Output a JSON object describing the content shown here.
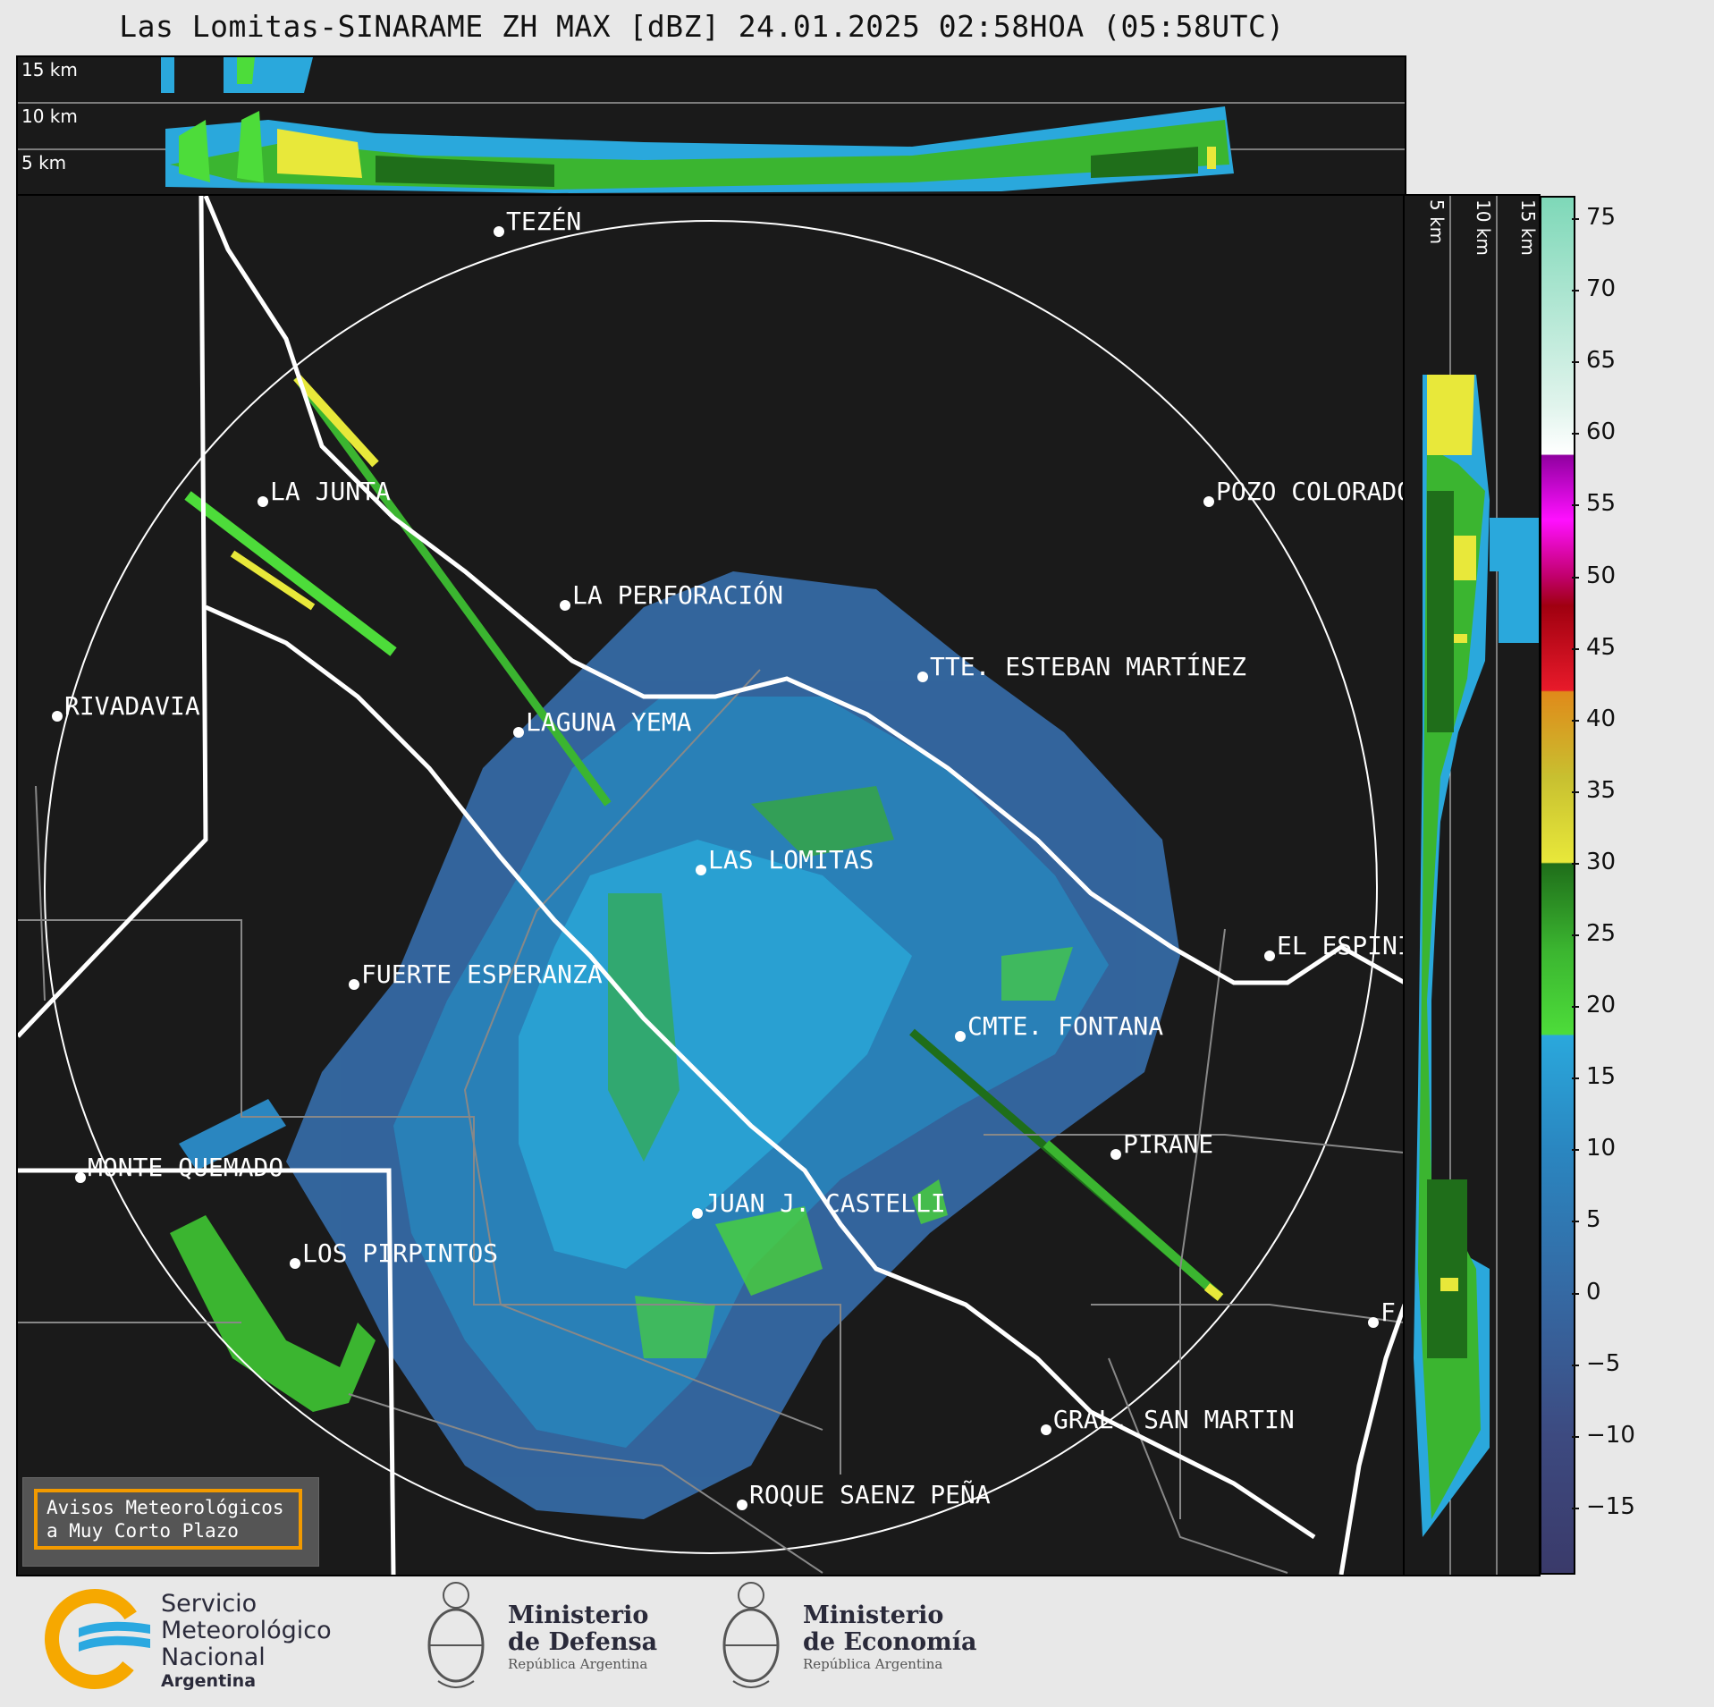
{
  "title": "Las Lomitas-SINARAME ZH MAX [dBZ] 24.01.2025 02:58HOA (05:58UTC)",
  "top_panel": {
    "height_labels": [
      "15 km",
      "10 km",
      "5 km"
    ]
  },
  "side_panel": {
    "height_labels": [
      "5 km",
      "10 km",
      "15 km"
    ]
  },
  "cities": [
    {
      "name": "TEZÉN"
    },
    {
      "name": "LA JUNTA"
    },
    {
      "name": "POZO COLORADO"
    },
    {
      "name": "LA PERFORACIÓN"
    },
    {
      "name": "TTE. ESTEBAN MARTÍNEZ"
    },
    {
      "name": "RIVADAVIA"
    },
    {
      "name": "LAGUNA YEMA"
    },
    {
      "name": "LAS LOMITAS"
    },
    {
      "name": "EL ESPINILLO"
    },
    {
      "name": "FUERTE ESPERANZA"
    },
    {
      "name": "CMTE. FONTANA"
    },
    {
      "name": "PIRANE"
    },
    {
      "name": "MONTE QUEMADO"
    },
    {
      "name": "JUAN J. CASTELLI"
    },
    {
      "name": "LOS PIRPINTOS"
    },
    {
      "name": "F"
    },
    {
      "name": "GRAL. SAN MARTIN"
    },
    {
      "name": "ROQUE SAENZ PEÑA"
    }
  ],
  "colorbar": {
    "unit": "dBZ",
    "ticks": [
      "75",
      "70",
      "65",
      "60",
      "55",
      "50",
      "45",
      "40",
      "35",
      "30",
      "25",
      "20",
      "15",
      "10",
      "5",
      "0",
      "−5",
      "−10",
      "−15"
    ],
    "range": [
      -19.5,
      76.5
    ],
    "stops": [
      {
        "v": -19.5,
        "c": "#3a3a6a"
      },
      {
        "v": -10,
        "c": "#3d4a80"
      },
      {
        "v": 0,
        "c": "#3569a3"
      },
      {
        "v": 10,
        "c": "#2a86c0"
      },
      {
        "v": 18,
        "c": "#2aa8dc"
      },
      {
        "v": 18.1,
        "c": "#4ddc3a"
      },
      {
        "v": 24,
        "c": "#3bb530"
      },
      {
        "v": 30,
        "c": "#1f6e1a"
      },
      {
        "v": 30.1,
        "c": "#e8e83a"
      },
      {
        "v": 36,
        "c": "#c8c030"
      },
      {
        "v": 42,
        "c": "#e08a1a"
      },
      {
        "v": 42.1,
        "c": "#e81a2a"
      },
      {
        "v": 48,
        "c": "#a00010"
      },
      {
        "v": 50,
        "c": "#c0006a"
      },
      {
        "v": 54,
        "c": "#ff10ff"
      },
      {
        "v": 58.5,
        "c": "#9000a0"
      },
      {
        "v": 58.6,
        "c": "#ffffff"
      },
      {
        "v": 62,
        "c": "#e0f4ec"
      },
      {
        "v": 76.5,
        "c": "#7ed8b8"
      }
    ]
  },
  "avisos": {
    "line1": "Avisos Meteorológicos",
    "line2": "a Muy Corto Plazo"
  },
  "logos": {
    "smn": {
      "line1": "Servicio",
      "line2": "Meteorológico",
      "line3": "Nacional",
      "line4": "Argentina"
    },
    "defensa": {
      "line1": "Ministerio",
      "line2": "de Defensa",
      "line3": "República Argentina"
    },
    "economia": {
      "line1": "Ministerio",
      "line2": "de Economía",
      "line3": "República Argentina"
    }
  },
  "colors": {
    "background": "#1a1a1a",
    "smn_blue": "#2aa8e0",
    "smn_orange": "#f6a800",
    "avisos_border": "#f29a00"
  }
}
